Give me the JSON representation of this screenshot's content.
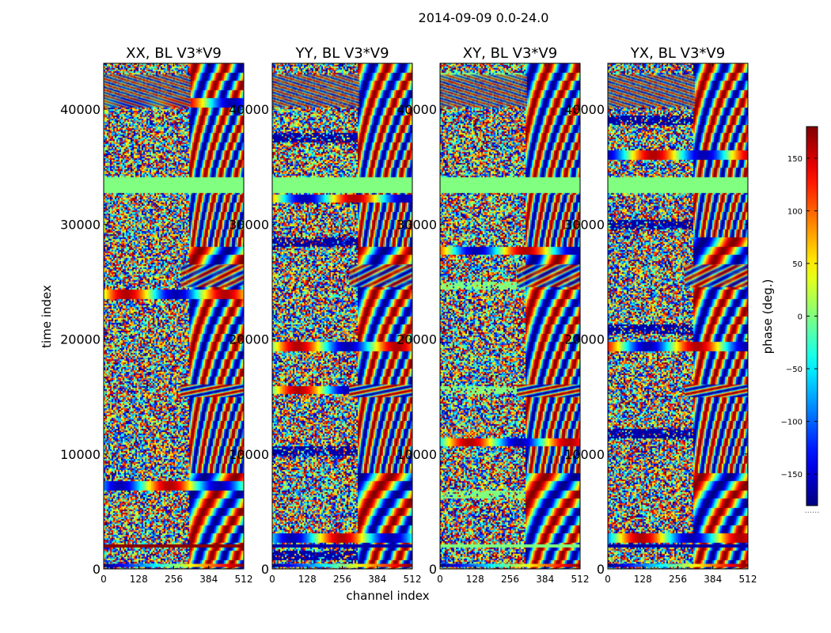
{
  "chart_data": {
    "type": "heatmap",
    "suptitle": "2014-09-09 0.0-24.0",
    "xlabel": "channel index",
    "ylabel": "time index",
    "xlim": [
      0,
      512
    ],
    "ylim": [
      0,
      44000
    ],
    "x_ticks": [
      "0",
      "128",
      "256",
      "384",
      "512"
    ],
    "y_ticks": [
      "0",
      "10000",
      "20000",
      "30000",
      "40000"
    ],
    "x_tick_values": [
      0,
      128,
      256,
      384,
      512
    ],
    "y_tick_values": [
      0,
      10000,
      20000,
      30000,
      40000
    ],
    "colorbar": {
      "label": "phase (deg.)",
      "colormap": "jet",
      "range": [
        -180,
        180
      ],
      "ticks": [
        "150",
        "100",
        "50",
        "0",
        "−50",
        "−100",
        "−150"
      ],
      "tick_values": [
        150,
        100,
        50,
        0,
        -50,
        -100,
        -150
      ],
      "footer": "......"
    },
    "panels": [
      {
        "title": "XX, BL V3*V9",
        "bias_color": "#8b0000"
      },
      {
        "title": "YY, BL V3*V9",
        "bias_color": "#0000aa"
      },
      {
        "title": "XY, BL V3*V9",
        "bias_color": "#7fff7f"
      },
      {
        "title": "YX, BL V3*V9",
        "bias_color": "#0000aa"
      }
    ],
    "flagged_band": {
      "y_from": 32800,
      "y_to": 34200,
      "phase": 0
    },
    "grid": false
  }
}
